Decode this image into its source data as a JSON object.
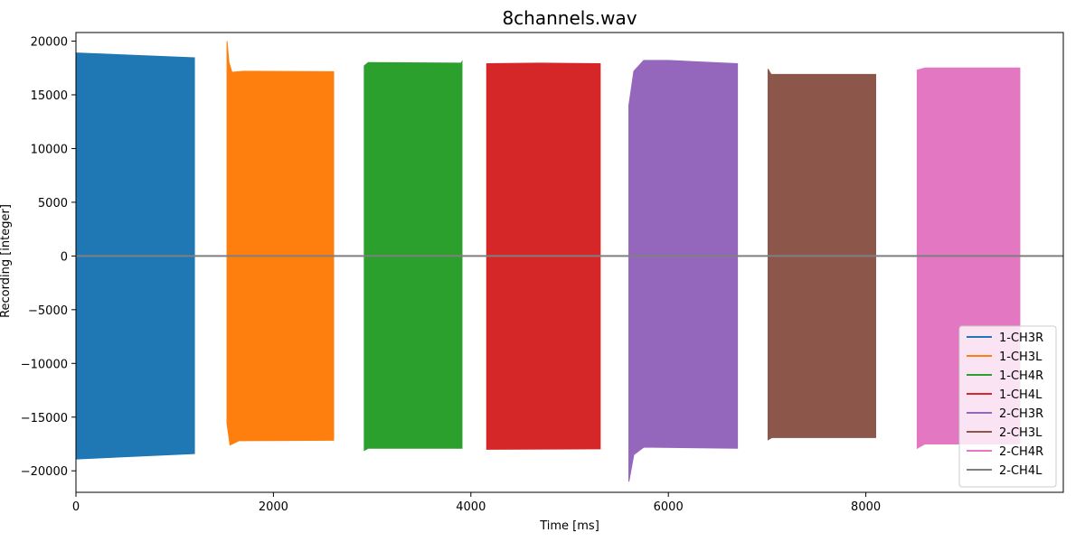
{
  "chart_data": {
    "type": "area",
    "title": "8channels.wav",
    "xlabel": "Time [ms]",
    "ylabel": "Recording [integer]",
    "xlim": [
      0,
      10000
    ],
    "ylim": [
      -22000,
      20800
    ],
    "xticks": [
      0,
      2000,
      4000,
      6000,
      8000
    ],
    "xtick_labels": [
      "0",
      "2000",
      "4000",
      "6000",
      "8000"
    ],
    "yticks": [
      -20000,
      -15000,
      -10000,
      -5000,
      0,
      5000,
      10000,
      15000,
      20000
    ],
    "ytick_labels": [
      "−20000",
      "−15000",
      "−10000",
      "−5000",
      "0",
      "5000",
      "10000",
      "15000",
      "20000"
    ],
    "legend_position": "lower-right",
    "grid": false,
    "series": [
      {
        "name": "1-CH3R",
        "color": "#1f77b4",
        "envelope_upper": [
          [
            0,
            18900
          ],
          [
            1200,
            18450
          ]
        ],
        "envelope_lower": [
          [
            0,
            -18900
          ],
          [
            1200,
            -18400
          ]
        ]
      },
      {
        "name": "1-CH3L",
        "color": "#ff7f0e",
        "envelope_upper": [
          [
            1530,
            20000
          ],
          [
            1550,
            18000
          ],
          [
            1580,
            17100
          ],
          [
            1700,
            17200
          ],
          [
            2610,
            17150
          ]
        ],
        "envelope_lower": [
          [
            1530,
            -15600
          ],
          [
            1560,
            -17600
          ],
          [
            1650,
            -17200
          ],
          [
            2610,
            -17150
          ]
        ]
      },
      {
        "name": "1-CH4R",
        "color": "#2ca02c",
        "envelope_upper": [
          [
            2920,
            17700
          ],
          [
            2960,
            18000
          ],
          [
            3900,
            17950
          ],
          [
            3910,
            18100
          ]
        ],
        "envelope_lower": [
          [
            2920,
            -18100
          ],
          [
            2960,
            -17900
          ],
          [
            3910,
            -17900
          ]
        ]
      },
      {
        "name": "1-CH4L",
        "color": "#d62728",
        "envelope_upper": [
          [
            4160,
            17900
          ],
          [
            4700,
            17950
          ],
          [
            5310,
            17900
          ]
        ],
        "envelope_lower": [
          [
            4160,
            -18000
          ],
          [
            5310,
            -17950
          ]
        ]
      },
      {
        "name": "2-CH3R",
        "color": "#9467bd",
        "envelope_upper": [
          [
            5600,
            14000
          ],
          [
            5650,
            17200
          ],
          [
            5750,
            18200
          ],
          [
            6000,
            18200
          ],
          [
            6700,
            17900
          ]
        ],
        "envelope_lower": [
          [
            5600,
            -21000
          ],
          [
            5650,
            -18500
          ],
          [
            5750,
            -17800
          ],
          [
            6700,
            -17900
          ]
        ]
      },
      {
        "name": "2-CH3L",
        "color": "#8c564b",
        "envelope_upper": [
          [
            7010,
            17400
          ],
          [
            7040,
            16900
          ],
          [
            8100,
            16900
          ]
        ],
        "envelope_lower": [
          [
            7010,
            -17100
          ],
          [
            7050,
            -16900
          ],
          [
            8100,
            -16900
          ]
        ]
      },
      {
        "name": "2-CH4R",
        "color": "#e377c2",
        "envelope_upper": [
          [
            8520,
            17300
          ],
          [
            8600,
            17500
          ],
          [
            9560,
            17500
          ]
        ],
        "envelope_lower": [
          [
            8520,
            -17900
          ],
          [
            8600,
            -17500
          ],
          [
            9560,
            -17500
          ]
        ]
      },
      {
        "name": "2-CH4L",
        "color": "#7f7f7f",
        "line": [
          [
            0,
            0
          ],
          [
            1400,
            0
          ],
          [
            3000,
            0
          ],
          [
            5000,
            0
          ],
          [
            7000,
            0
          ],
          [
            10000,
            0
          ]
        ]
      }
    ]
  }
}
